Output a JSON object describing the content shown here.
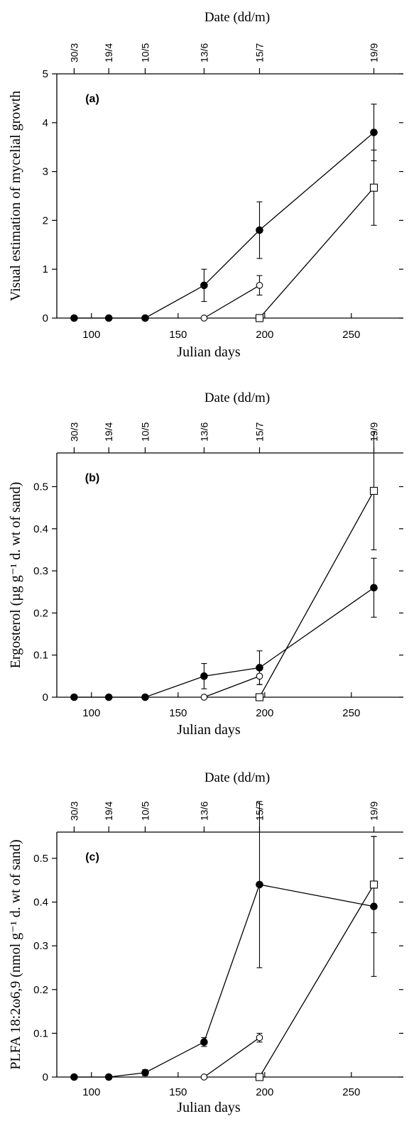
{
  "chart_data": [
    {
      "type": "line",
      "panel_label": "(a)",
      "xlabel": "Julian days",
      "ylabel": "Visual estimation of mycelial growth",
      "top_axis_label": "Date (dd/m)",
      "top_ticks": [
        {
          "x": 90,
          "label": "30/3"
        },
        {
          "x": 110,
          "label": "19/4"
        },
        {
          "x": 131,
          "label": "10/5"
        },
        {
          "x": 165,
          "label": "13/6"
        },
        {
          "x": 197,
          "label": "15/7"
        },
        {
          "x": 263,
          "label": "19/9"
        }
      ],
      "xlim": [
        80,
        280
      ],
      "ylim": [
        0,
        5
      ],
      "x_ticks": [
        100,
        150,
        200,
        250
      ],
      "y_ticks": [
        0,
        1,
        2,
        3,
        4,
        5
      ],
      "y_tick_labels": [
        "0",
        "1",
        "2",
        "3",
        "4",
        "5"
      ],
      "series": [
        {
          "marker": "filled-circle",
          "x": [
            90,
            110,
            131,
            165,
            197,
            263
          ],
          "y": [
            0,
            0,
            0,
            0.67,
            1.8,
            3.8
          ],
          "err": [
            0,
            0,
            0,
            0.33,
            0.58,
            0.58
          ]
        },
        {
          "marker": "open-circle",
          "x": [
            165,
            197
          ],
          "y": [
            0,
            0.67
          ],
          "err": [
            0,
            0.2
          ]
        },
        {
          "marker": "open-square",
          "x": [
            197,
            263
          ],
          "y": [
            0,
            2.67
          ],
          "err": [
            0,
            0.77
          ]
        }
      ]
    },
    {
      "type": "line",
      "panel_label": "(b)",
      "xlabel": "Julian days",
      "ylabel": "Ergosterol (µg g⁻¹ d. wt of sand)",
      "top_axis_label": "Date (dd/m)",
      "top_ticks": [
        {
          "x": 90,
          "label": "30/3"
        },
        {
          "x": 110,
          "label": "19/4"
        },
        {
          "x": 131,
          "label": "10/5"
        },
        {
          "x": 165,
          "label": "13/6"
        },
        {
          "x": 197,
          "label": "15/7"
        },
        {
          "x": 263,
          "label": "19/9"
        }
      ],
      "xlim": [
        80,
        280
      ],
      "ylim": [
        0,
        0.58
      ],
      "x_ticks": [
        100,
        150,
        200,
        250
      ],
      "y_ticks": [
        0,
        0.1,
        0.2,
        0.3,
        0.4,
        0.5
      ],
      "y_tick_labels": [
        "0",
        "0.1",
        "0.2",
        "0.3",
        "0.4",
        "0.5"
      ],
      "series": [
        {
          "marker": "filled-circle",
          "x": [
            90,
            110,
            131,
            165,
            197,
            263
          ],
          "y": [
            0,
            0,
            0,
            0.05,
            0.07,
            0.26
          ],
          "err": [
            0,
            0,
            0,
            0.03,
            0.04,
            0.07
          ]
        },
        {
          "marker": "open-circle",
          "x": [
            165,
            197
          ],
          "y": [
            0,
            0.05
          ],
          "err": [
            0,
            0.02
          ]
        },
        {
          "marker": "open-square",
          "x": [
            197,
            263
          ],
          "y": [
            0,
            0.49
          ],
          "err": [
            0,
            0.14
          ]
        }
      ]
    },
    {
      "type": "line",
      "panel_label": "(c)",
      "xlabel": "Julian days",
      "ylabel": "PLFA 18:2ω6,9 (nmol g⁻¹ d. wt of sand)",
      "top_axis_label": "Date (dd/m)",
      "top_ticks": [
        {
          "x": 90,
          "label": "30/3"
        },
        {
          "x": 110,
          "label": "19/4"
        },
        {
          "x": 131,
          "label": "10/5"
        },
        {
          "x": 165,
          "label": "13/6"
        },
        {
          "x": 197,
          "label": "15/7"
        },
        {
          "x": 263,
          "label": "19/9"
        }
      ],
      "xlim": [
        80,
        280
      ],
      "ylim": [
        0,
        0.56
      ],
      "x_ticks": [
        100,
        150,
        200,
        250
      ],
      "y_ticks": [
        0,
        0.1,
        0.2,
        0.3,
        0.4,
        0.5
      ],
      "y_tick_labels": [
        "0",
        "0.1",
        "0.2",
        "0.3",
        "0.4",
        "0.5"
      ],
      "series": [
        {
          "marker": "filled-circle",
          "x": [
            90,
            110,
            131,
            165,
            197,
            263
          ],
          "y": [
            0,
            0,
            0.01,
            0.08,
            0.44,
            0.39
          ],
          "err": [
            0,
            0,
            0.007,
            0.01,
            0.19,
            0.16
          ]
        },
        {
          "marker": "open-circle",
          "x": [
            165,
            197
          ],
          "y": [
            0,
            0.09
          ],
          "err": [
            0,
            0.01
          ]
        },
        {
          "marker": "open-square",
          "x": [
            197,
            263
          ],
          "y": [
            0,
            0.44
          ],
          "err": [
            0,
            0.11
          ]
        }
      ]
    }
  ]
}
